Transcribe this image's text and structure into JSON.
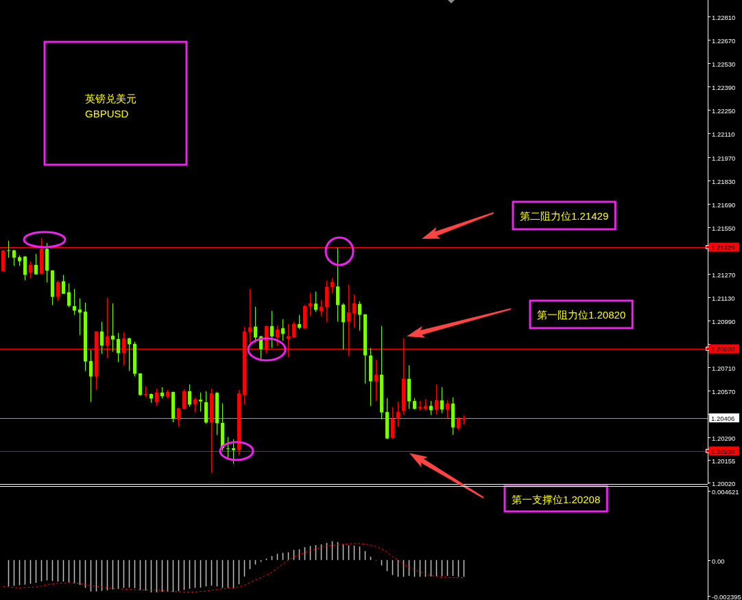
{
  "chart_data": [
    {
      "type": "candlestick",
      "title": "英镑兑美元",
      "subtitle": "GBPUSD",
      "categories": [
        null,
        null,
        null,
        null,
        null,
        null,
        null,
        null,
        null,
        null,
        null,
        null,
        null,
        null,
        null,
        null,
        null,
        null,
        null,
        null,
        null,
        null,
        null,
        null,
        null,
        null,
        null,
        null,
        null,
        null,
        null,
        null,
        null,
        null,
        null,
        null,
        null,
        null,
        null,
        null,
        null,
        null,
        null,
        null,
        null,
        null,
        null,
        null,
        null,
        null,
        null,
        null,
        null,
        null,
        null,
        null,
        null,
        null,
        null,
        null,
        null,
        null,
        null,
        null,
        null,
        null,
        null,
        null,
        null,
        null,
        null,
        null,
        null,
        null,
        null,
        null,
        null,
        null,
        null,
        null,
        null,
        null,
        null,
        null,
        null,
        null,
        null,
        null,
        null,
        null,
        null,
        null,
        null,
        null,
        null,
        null,
        null,
        null,
        null,
        null,
        null,
        null,
        null,
        null,
        null,
        null,
        null,
        null,
        null,
        null,
        null,
        null,
        null,
        null,
        null,
        null,
        null,
        null,
        null,
        null,
        null,
        null,
        null,
        null,
        null,
        null,
        null,
        null,
        null
      ],
      "ohlc": [
        [
          1.21286,
          1.2141,
          1.21286,
          1.2141
        ],
        [
          1.2141,
          1.21468,
          1.21366,
          1.2141
        ],
        [
          1.2141,
          1.21413,
          1.21317,
          1.21366
        ],
        [
          1.21369,
          1.2138,
          1.21317,
          1.21345
        ],
        [
          1.21373,
          1.21376,
          1.2123,
          1.21263
        ],
        [
          1.21278,
          1.21344,
          1.21242,
          1.21323
        ],
        [
          1.21323,
          1.21389,
          1.21263,
          1.21266
        ],
        [
          1.2127,
          1.21484,
          1.2127,
          1.21419
        ],
        [
          1.21419,
          1.21455,
          1.21218,
          1.21288
        ],
        [
          1.2129,
          1.2129,
          1.21082,
          1.21131
        ],
        [
          1.21131,
          1.21229,
          1.21107,
          1.2122
        ],
        [
          1.21225,
          1.21262,
          1.21148,
          1.2115
        ],
        [
          1.21159,
          1.21212,
          1.21069,
          1.21078
        ],
        [
          1.21076,
          1.21179,
          1.21024,
          1.21049
        ],
        [
          1.21056,
          1.21122,
          1.20901,
          1.21037
        ],
        [
          1.21043,
          1.21097,
          1.20687,
          1.20744
        ],
        [
          1.20747,
          1.20813,
          1.20501,
          1.20654
        ],
        [
          1.20654,
          1.20924,
          1.20575,
          1.20924
        ],
        [
          1.20924,
          1.20982,
          1.2079,
          1.20839
        ],
        [
          1.20839,
          1.21126,
          1.20765,
          1.20895
        ],
        [
          1.20899,
          1.21093,
          1.20802,
          1.20876
        ],
        [
          1.20879,
          1.20916,
          1.2074,
          1.20794
        ],
        [
          1.20794,
          1.2092,
          1.2072,
          1.20883
        ],
        [
          1.20883,
          1.20887,
          1.20687,
          1.20847
        ],
        [
          1.2085,
          1.20862,
          1.20654,
          1.2067
        ],
        [
          1.20673,
          1.20673,
          1.20538,
          1.20543
        ],
        [
          1.20543,
          1.20595,
          1.2053,
          1.20548
        ],
        [
          1.20549,
          1.20553,
          1.20497,
          1.20522
        ],
        [
          1.20501,
          1.20582,
          1.20477,
          1.20558
        ],
        [
          1.20558,
          1.2059,
          1.20522,
          1.20536
        ],
        [
          1.20534,
          1.20574,
          1.20522,
          1.20562
        ],
        [
          1.20562,
          1.20562,
          1.2038,
          1.204
        ],
        [
          1.20398,
          1.20467,
          1.20353,
          1.20463
        ],
        [
          1.2046,
          1.20578,
          1.2046,
          1.20566
        ],
        [
          1.20566,
          1.20607,
          1.20472,
          1.20486
        ],
        [
          1.20489,
          1.20529,
          1.20439,
          1.20516
        ],
        [
          1.20515,
          1.20558,
          1.20444,
          1.20505
        ],
        [
          1.205,
          1.20566,
          1.20371,
          1.20378
        ],
        [
          1.20378,
          1.20582,
          1.20077,
          1.20553
        ],
        [
          1.20556,
          1.20562,
          1.20304,
          1.20374
        ],
        [
          1.20376,
          1.20493,
          1.20209,
          1.20225
        ],
        [
          1.20223,
          1.20291,
          1.20168,
          1.20223
        ],
        [
          1.20224,
          1.20278,
          1.20131,
          1.20213
        ],
        [
          1.20213,
          1.20574,
          1.20184,
          1.20553
        ],
        [
          1.20545,
          1.20953,
          1.20485,
          1.20923
        ],
        [
          1.20921,
          1.21179,
          1.20854,
          1.20949
        ],
        [
          1.20953,
          1.21072,
          1.20858,
          1.20888
        ],
        [
          1.20894,
          1.20899,
          1.20744,
          1.20817
        ],
        [
          1.20814,
          1.20957,
          1.20792,
          1.20957
        ],
        [
          1.20956,
          1.21047,
          1.20825,
          1.20894
        ],
        [
          1.20891,
          1.20961,
          1.20839,
          1.20935
        ],
        [
          1.20943,
          1.20998,
          1.20868,
          1.20909
        ],
        [
          1.2088,
          1.20969,
          1.20769,
          1.20895
        ],
        [
          1.20888,
          1.20982,
          1.20888,
          1.20969
        ],
        [
          1.20968,
          1.21023,
          1.20938,
          1.20946
        ],
        [
          1.20942,
          1.21083,
          1.20942,
          1.21076
        ],
        [
          1.21074,
          1.21155,
          1.21016,
          1.21093
        ],
        [
          1.21091,
          1.21163,
          1.21041,
          1.21053
        ],
        [
          1.21047,
          1.21113,
          1.21016,
          1.21072
        ],
        [
          1.21069,
          1.21229,
          1.20979,
          1.21192
        ],
        [
          1.21189,
          1.21245,
          1.21152,
          1.2122
        ],
        [
          1.21194,
          1.21426,
          1.20983,
          1.21082
        ],
        [
          1.21085,
          1.21093,
          1.20814,
          1.20979
        ],
        [
          1.20983,
          1.21204,
          1.20777,
          1.21038
        ],
        [
          1.21032,
          1.21146,
          1.20946,
          1.21093
        ],
        [
          1.21089,
          1.21105,
          1.20929,
          1.21024
        ],
        [
          1.21027,
          1.21027,
          1.20612,
          1.20781
        ],
        [
          1.2078,
          1.20825,
          1.20477,
          1.20625
        ],
        [
          1.20625,
          1.20755,
          1.20509,
          1.20665
        ],
        [
          1.20665,
          1.20957,
          1.20398,
          1.20439
        ],
        [
          1.20441,
          1.20525,
          1.20279,
          1.20283
        ],
        [
          1.20287,
          1.20471,
          1.20279,
          1.20401
        ],
        [
          1.20402,
          1.20504,
          1.20353,
          1.20442
        ],
        [
          1.20448,
          1.20883,
          1.20427,
          1.20641
        ],
        [
          1.2064,
          1.20722,
          1.2046,
          1.20505
        ],
        [
          1.20507,
          1.20525,
          1.20456,
          1.2046
        ],
        [
          1.20463,
          1.20508,
          1.2045,
          1.20472
        ],
        [
          1.20463,
          1.2052,
          1.2045,
          1.20478
        ],
        [
          1.20478,
          1.20508,
          1.20423,
          1.20452
        ],
        [
          1.20456,
          1.20607,
          1.20427,
          1.20512
        ],
        [
          1.20511,
          1.2059,
          1.20435,
          1.20456
        ],
        [
          1.20456,
          1.20512,
          1.20402,
          1.20492
        ],
        [
          1.20492,
          1.20529,
          1.20304,
          1.20349
        ],
        [
          1.20345,
          1.20409,
          1.20332,
          1.20401
        ],
        [
          1.20398,
          1.20422,
          1.20365,
          1.20406
        ],
        null,
        null,
        null,
        null,
        null,
        null,
        null,
        null,
        null,
        null,
        null,
        null,
        null,
        null,
        null,
        null,
        null,
        null,
        null,
        null,
        null,
        null,
        null,
        null,
        null,
        null,
        null,
        null,
        null,
        null,
        null,
        null,
        null,
        null,
        null,
        null,
        null,
        null,
        null,
        null,
        null,
        null,
        null,
        null
      ],
      "colors": [
        "#ff0000",
        "#7cfc00",
        "#7cfc00",
        "#7cfc00",
        "#7cfc00",
        "#ff0000",
        "#7cfc00",
        "#ff0000",
        "#7cfc00",
        "#7cfc00",
        "#ff0000",
        "#7cfc00",
        "#7cfc00",
        "#7cfc00",
        "#7cfc00",
        "#7cfc00",
        "#7cfc00",
        "#ff0000",
        "#7cfc00",
        "#ff0000",
        "#7cfc00",
        "#7cfc00",
        "#ff0000",
        "#7cfc00",
        "#7cfc00",
        "#7cfc00",
        "#ff0000",
        "#7cfc00",
        "#ff0000",
        "#7cfc00",
        "#ff0000",
        "#7cfc00",
        "#ff0000",
        "#ff0000",
        "#7cfc00",
        "#ff0000",
        "#7cfc00",
        "#7cfc00",
        "#ff0000",
        "#7cfc00",
        "#7cfc00",
        "#7cfc00",
        "#7cfc00",
        "#ff0000",
        "#ff0000",
        "#ff0000",
        "#7cfc00",
        "#7cfc00",
        "#ff0000",
        "#7cfc00",
        "#ff0000",
        "#7cfc00",
        "#ff0000",
        "#ff0000",
        "#7cfc00",
        "#ff0000",
        "#ff0000",
        "#7cfc00",
        "#ff0000",
        "#ff0000",
        "#ff0000",
        "#7cfc00",
        "#7cfc00",
        "#ff0000",
        "#ff0000",
        "#7cfc00",
        "#7cfc00",
        "#7cfc00",
        "#ff0000",
        "#7cfc00",
        "#7cfc00",
        "#ff0000",
        "#ff0000",
        "#ff0000",
        "#7cfc00",
        "#7cfc00",
        "#ff0000",
        "#ff0000",
        "#7cfc00",
        "#ff0000",
        "#7cfc00",
        "#ff0000",
        "#7cfc00",
        "#ff0000",
        "#ff0000",
        null,
        null,
        null,
        null,
        null,
        null,
        null,
        null,
        null,
        null,
        null,
        null,
        null,
        null,
        null,
        null,
        null,
        null,
        null,
        null,
        null,
        null,
        null,
        null,
        null,
        null,
        null,
        null,
        null,
        null,
        null,
        null,
        null,
        null,
        null,
        null,
        null,
        null,
        null,
        null,
        null,
        null,
        null,
        null
      ],
      "ylim": [
        1.2001,
        1.2291
      ],
      "yticks": [
        {
          "value": 1.2281,
          "label": "1.22810"
        },
        {
          "value": 1.2267,
          "label": "1.22670"
        },
        {
          "value": 1.2253,
          "label": "1.22530"
        },
        {
          "value": 1.2239,
          "label": "1.22390"
        },
        {
          "value": 1.2225,
          "label": "1.22250"
        },
        {
          "value": 1.2211,
          "label": "1.22110"
        },
        {
          "value": 1.2197,
          "label": "1.21970"
        },
        {
          "value": 1.2183,
          "label": "1.21830"
        },
        {
          "value": 1.2169,
          "label": "1.21690"
        },
        {
          "value": 1.2155,
          "label": "1.21550"
        },
        {
          "value": 1.2141,
          "label": null
        },
        {
          "value": 1.2127,
          "label": "1.21270"
        },
        {
          "value": 1.2113,
          "label": "1.21130"
        },
        {
          "value": 1.2099,
          "label": "1.20990"
        },
        {
          "value": 1.2085,
          "label": null
        },
        {
          "value": 1.2071,
          "label": "1.20710"
        },
        {
          "value": 1.2057,
          "label": "1.20570"
        },
        {
          "value": 1.2043,
          "label": null
        },
        {
          "value": 1.2029,
          "label": "1.20290"
        },
        1.20155,
        {
          "value": 1.2002,
          "label": "1.20020"
        }
      ],
      "tick_labels": "y",
      "ref_lines": [
        {
          "axis": "y",
          "value": 1.21429,
          "label": "1.21429",
          "color": "#ff0000"
        },
        {
          "axis": "y",
          "value": 1.2082,
          "label": "1.20820",
          "color": "#ff0000"
        },
        {
          "axis": "y",
          "value": 1.20406,
          "label": "1.20406",
          "color": "#8899aa"
        },
        {
          "axis": "y",
          "value": 1.20208,
          "label": "1.20208",
          "color": "#ff0000"
        }
      ],
      "annotations": [
        "第二阻力位1.21429",
        "第一阻力位1.20820",
        "第一支撑位1.20208"
      ]
    },
    {
      "type": "bar",
      "categories": [
        null,
        null,
        null,
        null,
        null,
        null,
        null,
        null,
        null,
        null,
        null,
        null,
        null,
        null,
        null,
        null,
        null,
        null,
        null,
        null,
        null,
        null,
        null,
        null,
        null,
        null,
        null,
        null,
        null,
        null,
        null,
        null,
        null,
        null,
        null,
        null,
        null,
        null,
        null,
        null,
        null,
        null,
        null,
        null,
        null,
        null,
        null,
        null,
        null,
        null,
        null,
        null,
        null,
        null,
        null,
        null,
        null,
        null,
        null,
        null,
        null,
        null,
        null,
        null,
        null,
        null,
        null,
        null,
        null,
        null,
        null,
        null,
        null,
        null,
        null,
        null,
        null,
        null,
        null,
        null,
        null,
        null,
        null,
        null,
        null,
        null,
        null,
        null,
        null,
        null,
        null,
        null,
        null,
        null,
        null,
        null,
        null,
        null,
        null,
        null,
        null,
        null,
        null,
        null,
        null,
        null,
        null,
        null,
        null,
        null,
        null,
        null,
        null,
        null,
        null,
        null,
        null,
        null,
        null,
        null,
        null,
        null,
        null,
        null,
        null,
        null,
        null,
        null,
        null
      ],
      "series": [
        {
          "color": "#c0c0c0",
          "values": [
            null,
            -0.00176,
            -0.00172,
            -0.00168,
            -0.00164,
            -0.00158,
            -0.00152,
            -0.00142,
            -0.00136,
            -0.0014,
            -0.00144,
            -0.00144,
            -0.0015,
            -0.00156,
            -0.00166,
            -0.00186,
            -0.0021,
            -0.0021,
            -0.00206,
            -0.00202,
            -0.00196,
            -0.00192,
            -0.00186,
            -0.00184,
            -0.00188,
            -0.002,
            -0.00204,
            -0.00216,
            -0.00216,
            -0.00212,
            -0.00212,
            -0.00214,
            -0.00208,
            -0.002,
            -0.00192,
            -0.00186,
            -0.00184,
            -0.00176,
            -0.0017,
            -0.00176,
            -0.00186,
            -0.00186,
            -0.00188,
            -0.00162,
            -0.0011,
            -0.0006,
            -0.0003,
            -0.00012,
            0.0001,
            0.00026,
            0.00042,
            0.00048,
            0.00052,
            0.00068,
            0.00072,
            0.00086,
            0.00094,
            0.001,
            0.00104,
            0.00114,
            0.00126,
            0.0012,
            0.00104,
            0.00098,
            0.00096,
            0.0009,
            0.0006,
            0.00022,
            0,
            -0.00036,
            -0.00074,
            -0.001,
            -0.00112,
            -0.00112,
            -0.00106,
            -0.00112,
            -0.00112,
            -0.00112,
            -0.0011,
            -0.00108,
            -0.00108,
            -0.00106,
            -0.00106,
            -0.00112,
            -0.00112,
            null,
            null,
            null,
            null,
            null,
            null,
            null,
            null,
            null,
            null,
            null,
            null,
            null,
            null,
            null,
            null,
            null,
            null,
            null,
            null,
            null,
            null,
            null,
            null,
            null,
            null,
            null,
            null,
            null,
            null,
            null,
            null,
            null,
            null,
            null,
            null,
            null,
            null,
            null,
            null,
            null,
            null,
            null,
            null
          ]
        },
        {
          "type": "line",
          "color": "#ff0000",
          "line_style": "dashed",
          "values": [
            -0.00176,
            -0.0018,
            -0.00184,
            -0.00186,
            -0.00184,
            -0.00182,
            -0.0018,
            -0.00174,
            -0.00164,
            -0.0016,
            -0.00156,
            -0.00154,
            -0.00152,
            -0.00154,
            -0.00156,
            -0.00166,
            -0.00172,
            -0.00176,
            -0.0018,
            -0.00186,
            -0.0019,
            -0.00192,
            -0.00194,
            -0.00196,
            -0.00198,
            -0.002,
            -0.002,
            -0.00202,
            -0.00202,
            -0.00204,
            -0.00208,
            -0.0021,
            -0.00212,
            -0.00214,
            -0.00214,
            -0.00214,
            -0.0021,
            -0.00208,
            -0.00202,
            -0.00196,
            -0.00192,
            -0.00188,
            -0.00186,
            -0.00182,
            -0.00168,
            -0.00152,
            -0.00134,
            -0.00118,
            -0.001,
            -0.00082,
            -0.00054,
            -0.00026,
            0,
            0.00022,
            0.00036,
            0.0005,
            0.00062,
            0.00072,
            0.00084,
            0.00092,
            0.00098,
            0.00102,
            0.00106,
            0.00108,
            0.0011,
            0.0011,
            0.00106,
            0.001,
            0.0009,
            0.00076,
            0.00052,
            0.00022,
            0,
            -0.00028,
            -0.00048,
            -0.00066,
            -0.0008,
            -0.00092,
            -0.00104,
            -0.0011,
            -0.00114,
            -0.00116,
            -0.00118,
            -0.00118,
            -0.00118,
            null,
            null,
            null,
            null,
            null,
            null,
            null,
            null,
            null,
            null,
            null,
            null,
            null,
            null,
            null,
            null,
            null,
            null,
            null,
            null,
            null,
            null,
            null,
            null,
            null,
            null,
            null,
            null,
            null,
            null,
            null,
            null,
            null,
            null,
            null,
            null,
            null,
            null,
            null,
            null,
            null,
            null,
            null,
            null
          ]
        }
      ],
      "ylim": [
        -0.00267,
        0.0049
      ],
      "yticks": [
        0.004621,
        {
          "value": 0,
          "label": "0.00"
        },
        -0.002395
      ],
      "tick_labels": "y"
    }
  ]
}
